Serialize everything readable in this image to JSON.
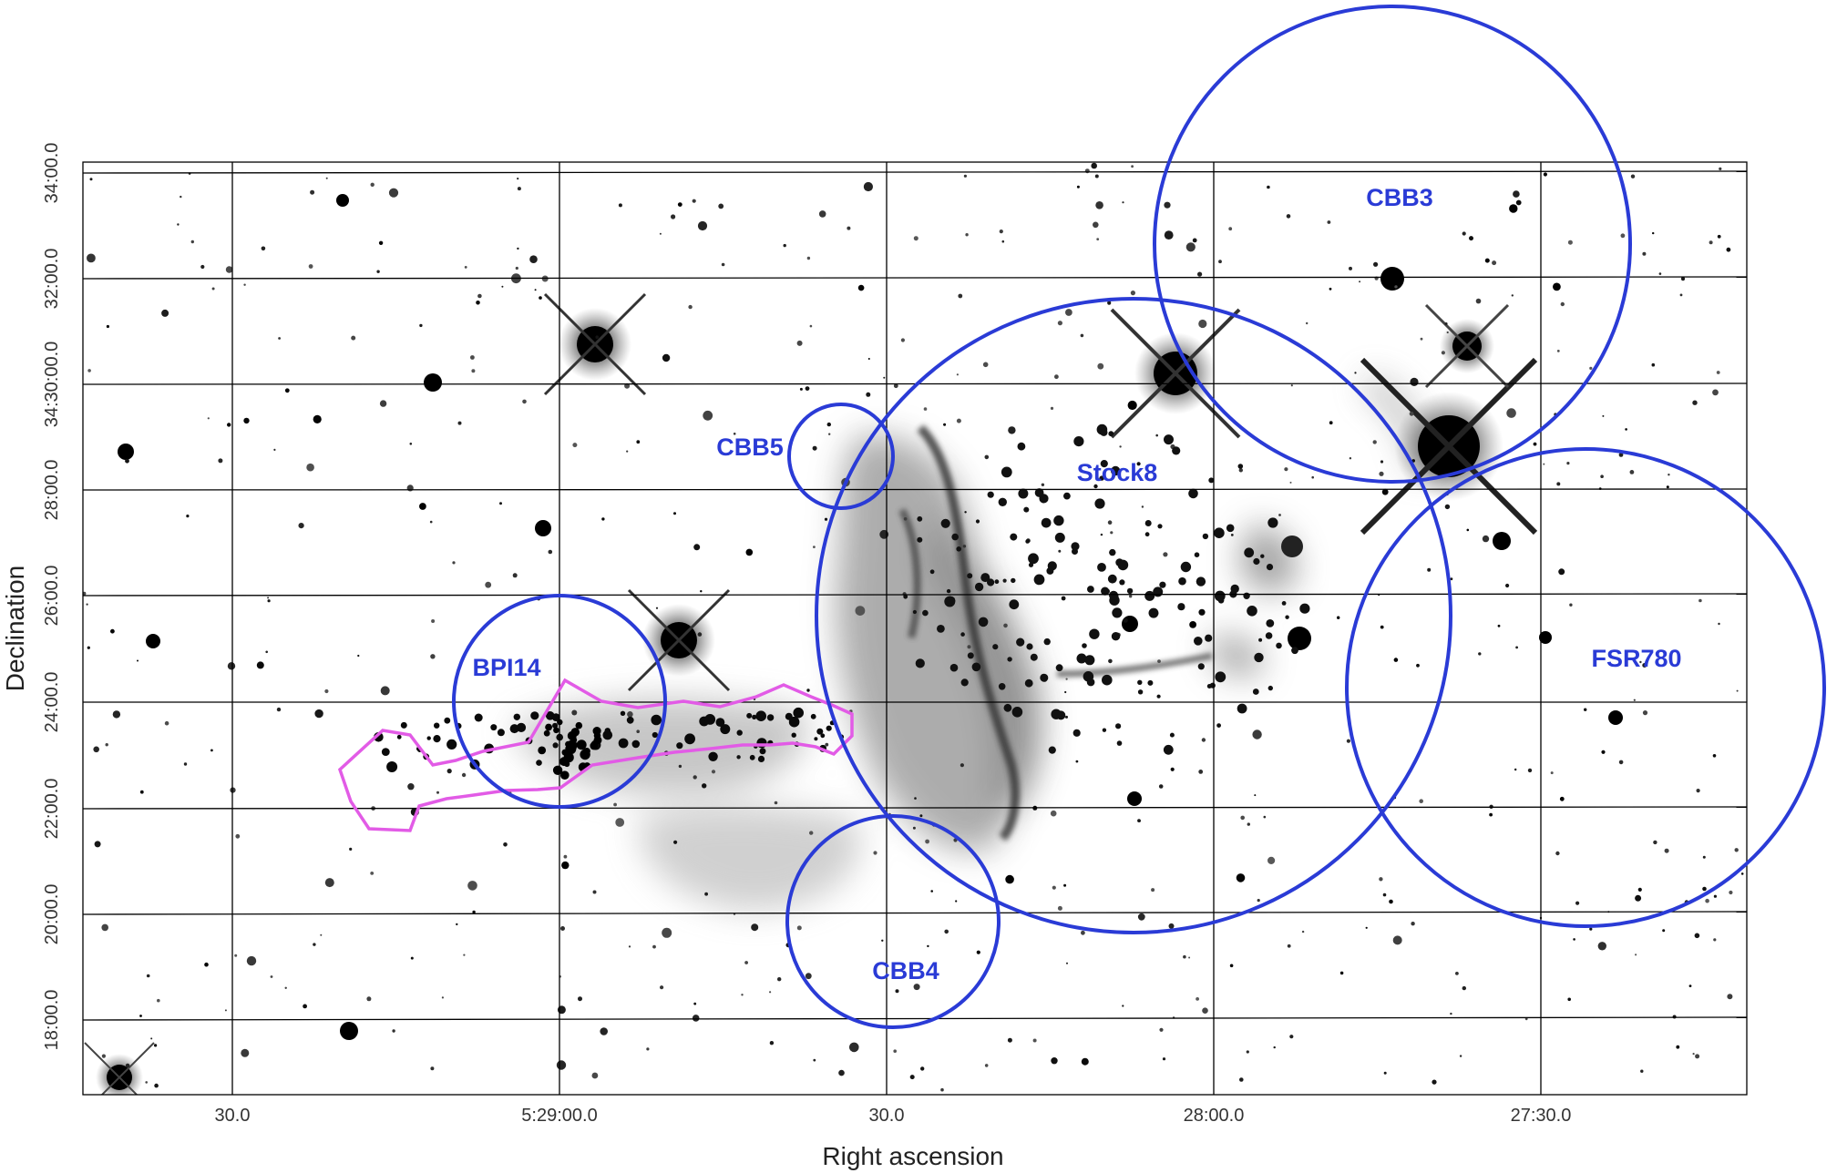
{
  "figure": {
    "x_axis_label": "Right ascension",
    "y_axis_label": "Declination",
    "x_ticks": [
      "30.0",
      "5:29:00.0",
      "30.0",
      "28:00.0",
      "27:30.0"
    ],
    "y_ticks": [
      "18:00.0",
      "20:00.0",
      "22:00.0",
      "24:00.0",
      "26:00.0",
      "28:00.0",
      "34:30:00.0",
      "32:00.0",
      "34:00.0"
    ],
    "colors": {
      "region_circle": "#2a3bd6",
      "region_polygon": "#e25be6",
      "grid": "#000000",
      "nebula": "#3a3a3a"
    },
    "image_style": "inverted grayscale sky image"
  },
  "regions": [
    {
      "label": "CBB3",
      "shape": "circle"
    },
    {
      "label": "CBB5",
      "shape": "circle"
    },
    {
      "label": "Stock8",
      "shape": "circle"
    },
    {
      "label": "FSR780",
      "shape": "circle"
    },
    {
      "label": "BPI14",
      "shape": "circle"
    },
    {
      "label": "CBB4",
      "shape": "circle"
    },
    {
      "label": "",
      "shape": "polygon"
    }
  ]
}
